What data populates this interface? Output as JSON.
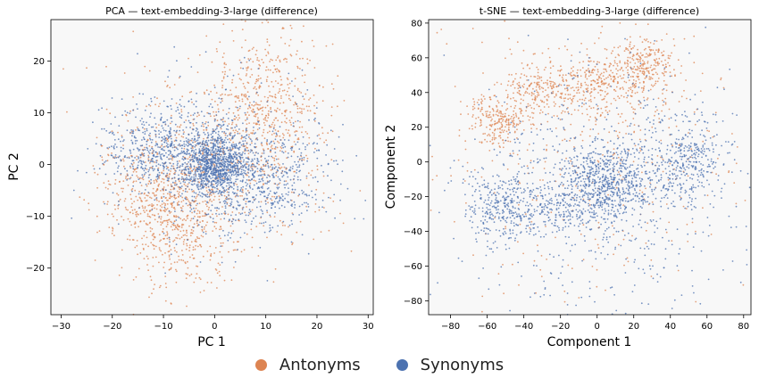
{
  "chart_data": [
    {
      "type": "scatter",
      "title": "PCA — text-embedding-3-large (difference)",
      "xlabel": "PC 1",
      "ylabel": "PC 2",
      "xlim": [
        -32,
        31
      ],
      "ylim": [
        -29,
        28
      ],
      "xticks": [
        -30,
        -20,
        -10,
        0,
        10,
        20,
        30
      ],
      "yticks": [
        -20,
        -10,
        0,
        10,
        20
      ],
      "xtick_labels": [
        "−30",
        "−20",
        "−10",
        "0",
        "10",
        "20",
        "30"
      ],
      "ytick_labels": [
        "−20",
        "−10",
        "0",
        "10",
        "20"
      ],
      "grid": false,
      "series": [
        {
          "name": "Antonyms",
          "color": "#dd8452",
          "clusters": [
            {
              "center": [
                10,
                10
              ],
              "spread": [
                6,
                8
              ],
              "count": 550
            },
            {
              "center": [
                -7,
                -10
              ],
              "spread": [
                5,
                7
              ],
              "count": 500
            },
            {
              "center": [
                0,
                0
              ],
              "spread": [
                11,
                11
              ],
              "count": 500
            },
            {
              "center": [
                -14,
                -5
              ],
              "spread": [
                5,
                5
              ],
              "count": 200
            }
          ]
        },
        {
          "name": "Synonyms",
          "color": "#4c72b0",
          "clusters": [
            {
              "center": [
                0,
                0
              ],
              "spread": [
                3,
                3
              ],
              "count": 900
            },
            {
              "center": [
                -10,
                3
              ],
              "spread": [
                6,
                4
              ],
              "count": 500
            },
            {
              "center": [
                10,
                -3
              ],
              "spread": [
                7,
                5
              ],
              "count": 500
            },
            {
              "center": [
                0,
                0
              ],
              "spread": [
                10,
                8
              ],
              "count": 400
            }
          ]
        }
      ]
    },
    {
      "type": "scatter",
      "title": "t-SNE — text-embedding-3-large (difference)",
      "xlabel": "Component 1",
      "ylabel": "Component 2",
      "xlim": [
        -92,
        84
      ],
      "ylim": [
        -88,
        82
      ],
      "xticks": [
        -80,
        -60,
        -40,
        -20,
        0,
        20,
        40,
        60,
        80
      ],
      "yticks": [
        -80,
        -60,
        -40,
        -20,
        0,
        20,
        40,
        60,
        80
      ],
      "xtick_labels": [
        "−80",
        "−60",
        "−40",
        "−20",
        "0",
        "20",
        "40",
        "60",
        "80"
      ],
      "ytick_labels": [
        "−80",
        "−60",
        "−40",
        "−20",
        "0",
        "20",
        "40",
        "60",
        "80"
      ],
      "grid": false,
      "series": [
        {
          "name": "Antonyms",
          "color": "#dd8452",
          "clusters": [
            {
              "center": [
                -55,
                25
              ],
              "spread": [
                8,
                8
              ],
              "count": 220
            },
            {
              "center": [
                -30,
                40
              ],
              "spread": [
                10,
                8
              ],
              "count": 220
            },
            {
              "center": [
                0,
                45
              ],
              "spread": [
                12,
                10
              ],
              "count": 260
            },
            {
              "center": [
                25,
                55
              ],
              "spread": [
                10,
                8
              ],
              "count": 260
            },
            {
              "center": [
                0,
                0
              ],
              "spread": [
                50,
                45
              ],
              "count": 450
            }
          ]
        },
        {
          "name": "Synonyms",
          "color": "#4c72b0",
          "clusters": [
            {
              "center": [
                5,
                -12
              ],
              "spread": [
                12,
                12
              ],
              "count": 700
            },
            {
              "center": [
                -50,
                -25
              ],
              "spread": [
                10,
                10
              ],
              "count": 320
            },
            {
              "center": [
                50,
                0
              ],
              "spread": [
                10,
                12
              ],
              "count": 320
            },
            {
              "center": [
                -20,
                -25
              ],
              "spread": [
                8,
                8
              ],
              "count": 150
            },
            {
              "center": [
                0,
                -15
              ],
              "spread": [
                45,
                40
              ],
              "count": 650
            }
          ]
        }
      ]
    }
  ],
  "legend": {
    "items": [
      {
        "label": "Antonyms",
        "color": "#dd8452"
      },
      {
        "label": "Synonyms",
        "color": "#4c72b0"
      }
    ]
  }
}
